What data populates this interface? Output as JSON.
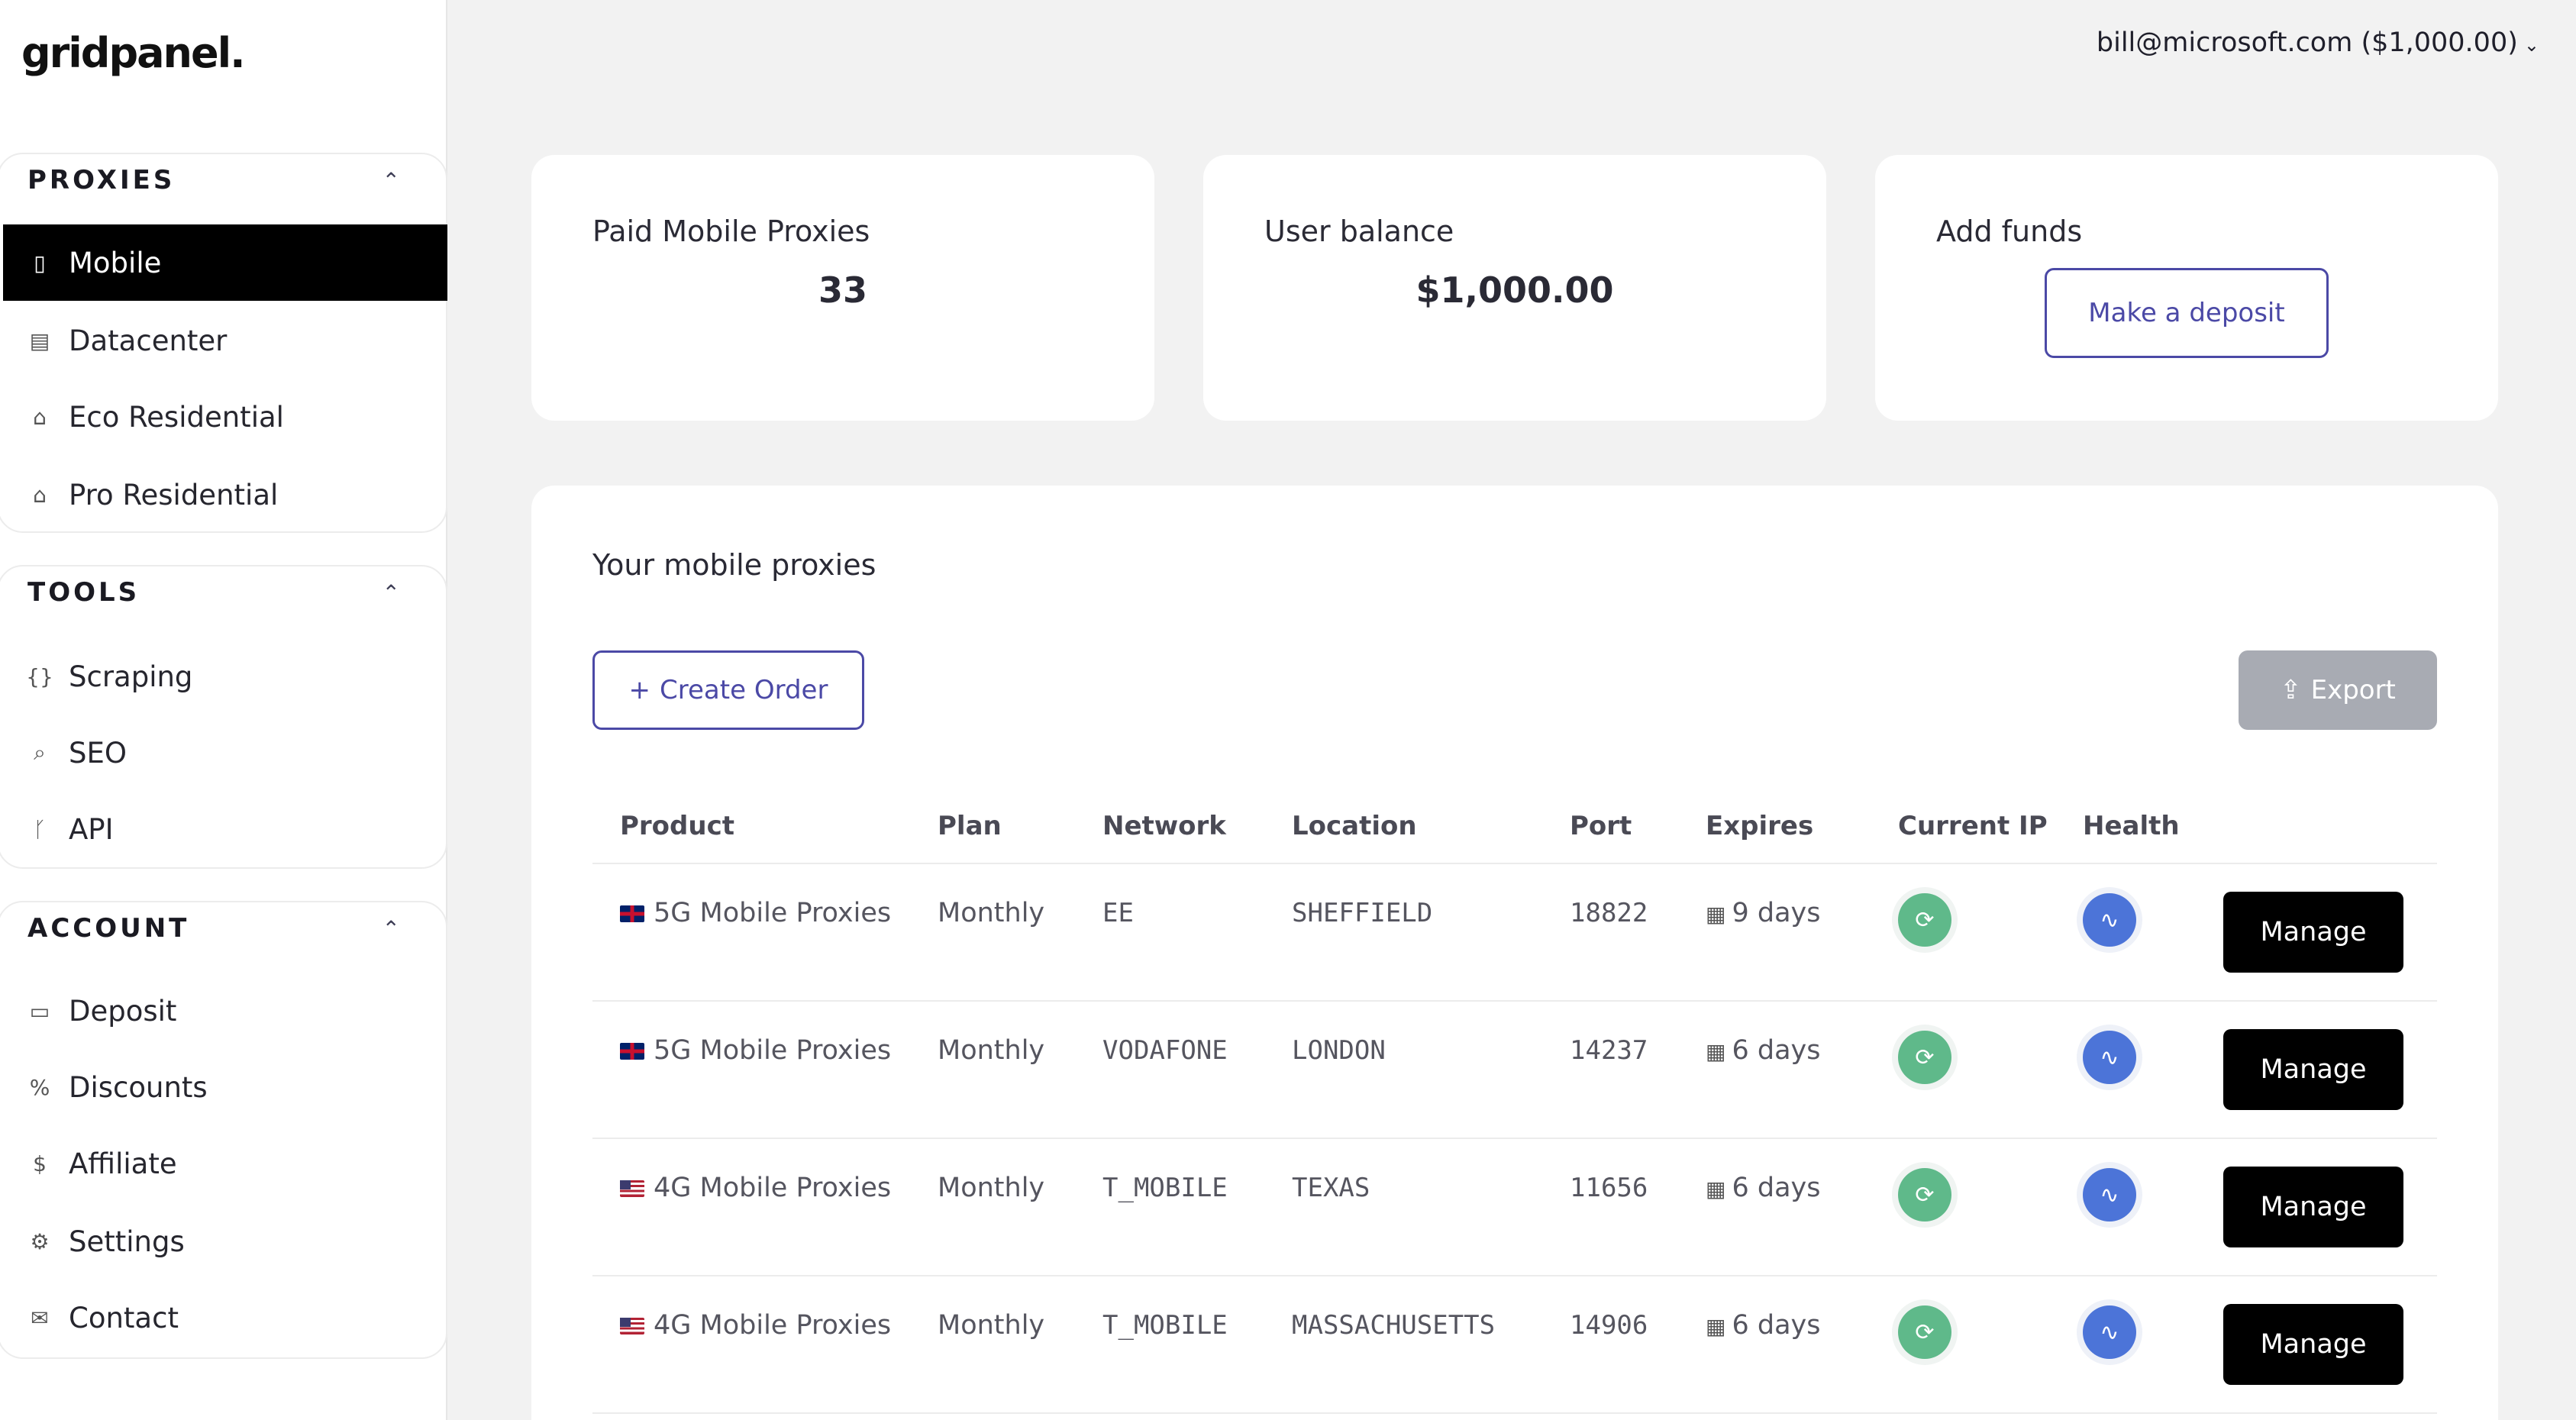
{
  "brand": {
    "logo_text": "gridpanel."
  },
  "header": {
    "user_label": "bill@microsoft.com ($1,000.00)"
  },
  "sidebar": {
    "sections": [
      {
        "title": "PROXIES",
        "items": [
          {
            "label": "Mobile",
            "icon": "mobile-icon",
            "active": true
          },
          {
            "label": "Datacenter",
            "icon": "server-icon",
            "active": false
          },
          {
            "label": "Eco Residential",
            "icon": "home-icon",
            "active": false
          },
          {
            "label": "Pro Residential",
            "icon": "home-plus-icon",
            "active": false
          }
        ]
      },
      {
        "title": "TOOLS",
        "items": [
          {
            "label": "Scraping",
            "icon": "braces-icon"
          },
          {
            "label": "SEO",
            "icon": "search-icon"
          },
          {
            "label": "API",
            "icon": "git-branch-icon"
          }
        ]
      },
      {
        "title": "ACCOUNT",
        "items": [
          {
            "label": "Deposit",
            "icon": "credit-card-icon"
          },
          {
            "label": "Discounts",
            "icon": "percent-icon"
          },
          {
            "label": "Affiliate",
            "icon": "dollar-icon"
          },
          {
            "label": "Settings",
            "icon": "gear-icon"
          },
          {
            "label": "Contact",
            "icon": "mail-icon"
          }
        ]
      }
    ]
  },
  "stats": {
    "paid_label": "Paid Mobile Proxies",
    "paid_value": "33",
    "balance_label": "User balance",
    "balance_value": "$1,000.00",
    "funds_label": "Add funds",
    "deposit_button": "Make a deposit"
  },
  "proxies": {
    "title": "Your mobile proxies",
    "create_button": "Create Order",
    "export_button": "Export",
    "columns": [
      "Product",
      "Plan",
      "Network",
      "Location",
      "Port",
      "Expires",
      "Current IP",
      "Health"
    ],
    "manage_label": "Manage",
    "rows": [
      {
        "flag": "uk",
        "product": "5G Mobile Proxies",
        "plan": "Monthly",
        "network": "EE",
        "location": "SHEFFIELD",
        "port": "18822",
        "expires": "9 days"
      },
      {
        "flag": "uk",
        "product": "5G Mobile Proxies",
        "plan": "Monthly",
        "network": "VODAFONE",
        "location": "LONDON",
        "port": "14237",
        "expires": "6 days"
      },
      {
        "flag": "us",
        "product": "4G Mobile Proxies",
        "plan": "Monthly",
        "network": "T_MOBILE",
        "location": "TEXAS",
        "port": "11656",
        "expires": "6 days"
      },
      {
        "flag": "us",
        "product": "4G Mobile Proxies",
        "plan": "Monthly",
        "network": "T_MOBILE",
        "location": "MASSACHUSETTS",
        "port": "14906",
        "expires": "6 days"
      }
    ]
  }
}
